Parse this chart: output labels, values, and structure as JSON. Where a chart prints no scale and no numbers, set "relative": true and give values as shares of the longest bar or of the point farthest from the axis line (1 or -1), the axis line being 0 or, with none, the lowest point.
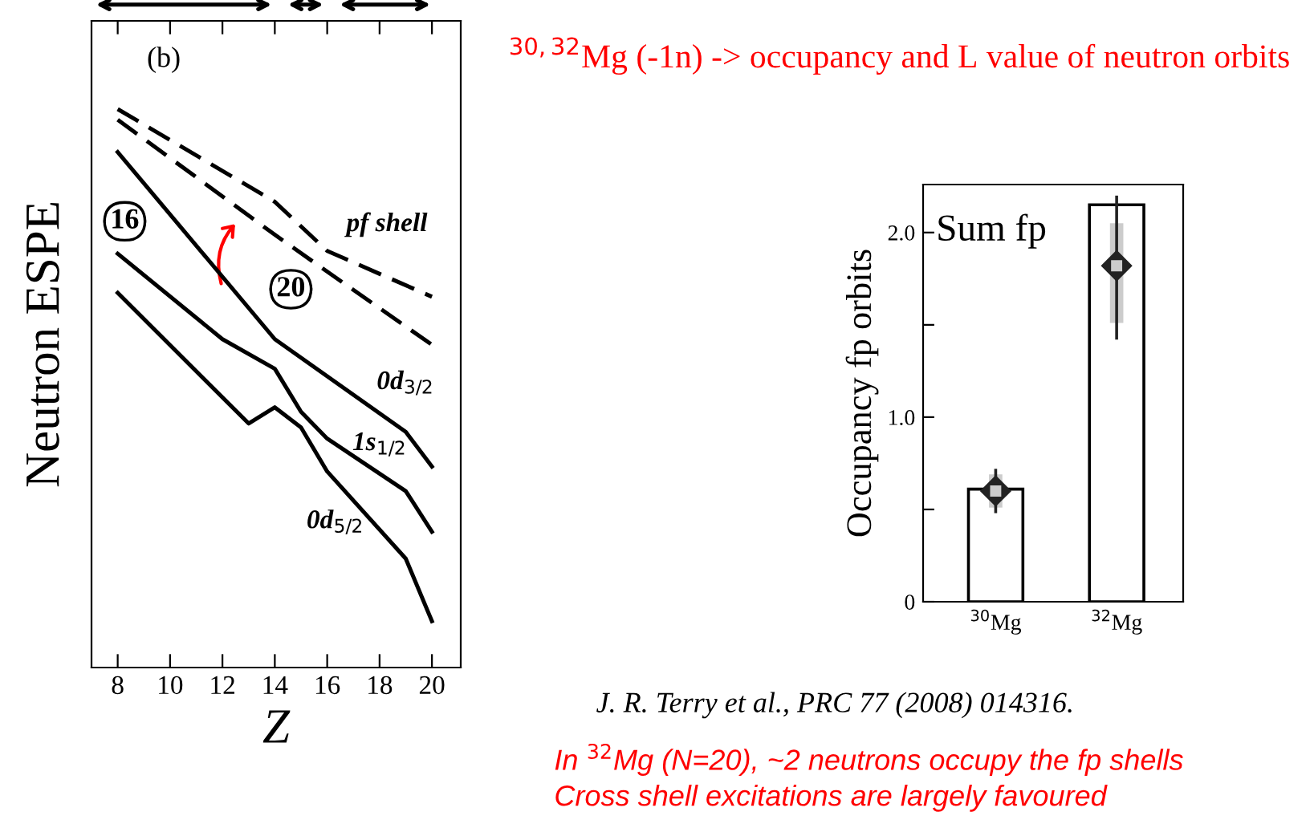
{
  "chart_data": [
    {
      "type": "line",
      "relative": true,
      "ylabel": "Neutron ESPE",
      "xlabel": "Z",
      "xlim": [
        7,
        21.1
      ],
      "xticks": [
        8,
        10,
        12,
        14,
        16,
        18,
        20
      ],
      "grid": false,
      "legend": false,
      "series": [
        {
          "color": "#000000",
          "line_style": "dashed",
          "x": [
            8,
            14,
            16,
            20
          ],
          "values": [
            1.0,
            0.834,
            0.746,
            0.664
          ]
        },
        {
          "color": "#000000",
          "line_style": "dashed",
          "x": [
            8,
            14,
            16,
            20
          ],
          "values": [
            0.981,
            0.775,
            0.709,
            0.578
          ]
        },
        {
          "color": "#000000",
          "line_style": "solid",
          "x": [
            8,
            14,
            19,
            20
          ],
          "values": [
            0.923,
            0.588,
            0.422,
            0.36
          ]
        },
        {
          "color": "#000000",
          "line_style": "solid",
          "x": [
            8,
            12,
            14,
            15,
            16,
            19,
            20
          ],
          "values": [
            0.741,
            0.588,
            0.535,
            0.458,
            0.41,
            0.316,
            0.243
          ]
        },
        {
          "color": "#000000",
          "line_style": "solid",
          "x": [
            8,
            13,
            14,
            15,
            16,
            19,
            20
          ],
          "values": [
            0.671,
            0.437,
            0.466,
            0.43,
            0.351,
            0.195,
            0.083
          ]
        }
      ],
      "annotations": [
        "(b)",
        "16",
        "20",
        "pf shell",
        "0d$_{3/2}$",
        "1s$_{1/2}$",
        "0d$_{5/2}$"
      ]
    },
    {
      "type": "bar",
      "title": "$^{30,32}$Mg (-1n) -> occupancy and L value of neutron orbits",
      "ylabel": "Occupancy fp orbits",
      "categories": [
        "$^{30}$Mg",
        "$^{32}$Mg"
      ],
      "values": [
        0.61,
        2.15
      ],
      "color": "#ffffff",
      "ylim": [
        0,
        2.26
      ],
      "yticks": [
        {
          "value": 0,
          "label": "0"
        },
        {
          "value": 0.5,
          "label": null
        },
        {
          "value": 1.0,
          "label": "1.0"
        },
        {
          "value": 1.5,
          "label": null
        },
        {
          "value": 2.0,
          "label": "2.0"
        }
      ],
      "grid": false,
      "legend": false,
      "series": [
        {
          "type": "scatter",
          "marker": "square",
          "color": "#cccccc",
          "x": [
            "$^{30}$Mg",
            "$^{32}$Mg"
          ],
          "values": [
            0.6,
            1.82
          ],
          "errors": [
            [
              0.51,
              0.69
            ],
            [
              1.51,
              2.05
            ]
          ]
        },
        {
          "type": "scatter",
          "marker": "diamond",
          "color": "#222222",
          "x": [
            "$^{30}$Mg",
            "$^{32}$Mg"
          ],
          "values": [
            0.6,
            1.82
          ],
          "errors": [
            [
              0.48,
              0.72
            ],
            [
              1.42,
              2.2
            ]
          ]
        }
      ],
      "annotations": [
        "Sum fp",
        "J. R. Terry et al., PRC 77 (2008) 014316.",
        "In $^{32}$Mg (N=20), ~2 neutrons occupy the fp shells",
        "Cross shell excitations are largely favoured"
      ]
    }
  ]
}
